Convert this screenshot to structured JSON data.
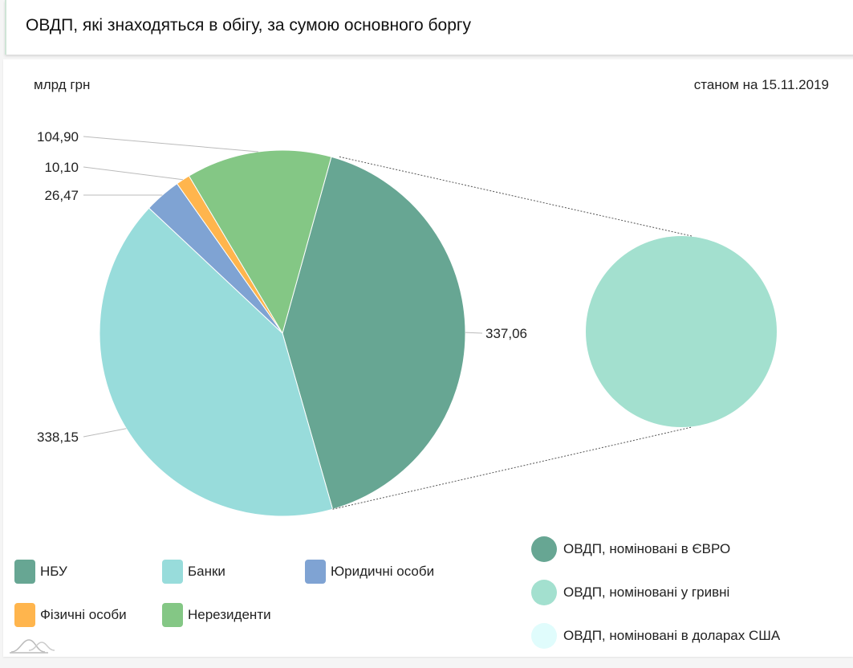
{
  "header": {
    "title": "ОВДП, які знаходяться в обігу, за сумою основного боргу"
  },
  "chart_data": {
    "type": "pie",
    "unit_label": "млрд грн",
    "date_label": "станом на 15.11.2019",
    "slices": [
      {
        "name": "НБУ",
        "value": 337.06,
        "label": "337,06",
        "color": "#67a693"
      },
      {
        "name": "Банки",
        "value": 338.15,
        "label": "338,15",
        "color": "#98dcdb"
      },
      {
        "name": "Юридичні особи",
        "value": 26.47,
        "label": "26,47",
        "color": "#7fa3d3"
      },
      {
        "name": "Фізичні особи",
        "value": 10.1,
        "label": "10,10",
        "color": "#ffb54d"
      },
      {
        "name": "Нерезиденти",
        "value": 104.9,
        "label": "104,90",
        "color": "#84c785"
      }
    ],
    "secondary_pie": {
      "detail_of": "НБУ",
      "legend": [
        {
          "name": "ОВДП, номіновані в ЄВРО",
          "color": "#67a693"
        },
        {
          "name": "ОВДП, номіновані у гривні",
          "color": "#a3e0cf"
        },
        {
          "name": "ОВДП, номіновані в доларах США",
          "color": "#e0fcfc"
        }
      ],
      "values": [
        0,
        100,
        0
      ]
    }
  }
}
